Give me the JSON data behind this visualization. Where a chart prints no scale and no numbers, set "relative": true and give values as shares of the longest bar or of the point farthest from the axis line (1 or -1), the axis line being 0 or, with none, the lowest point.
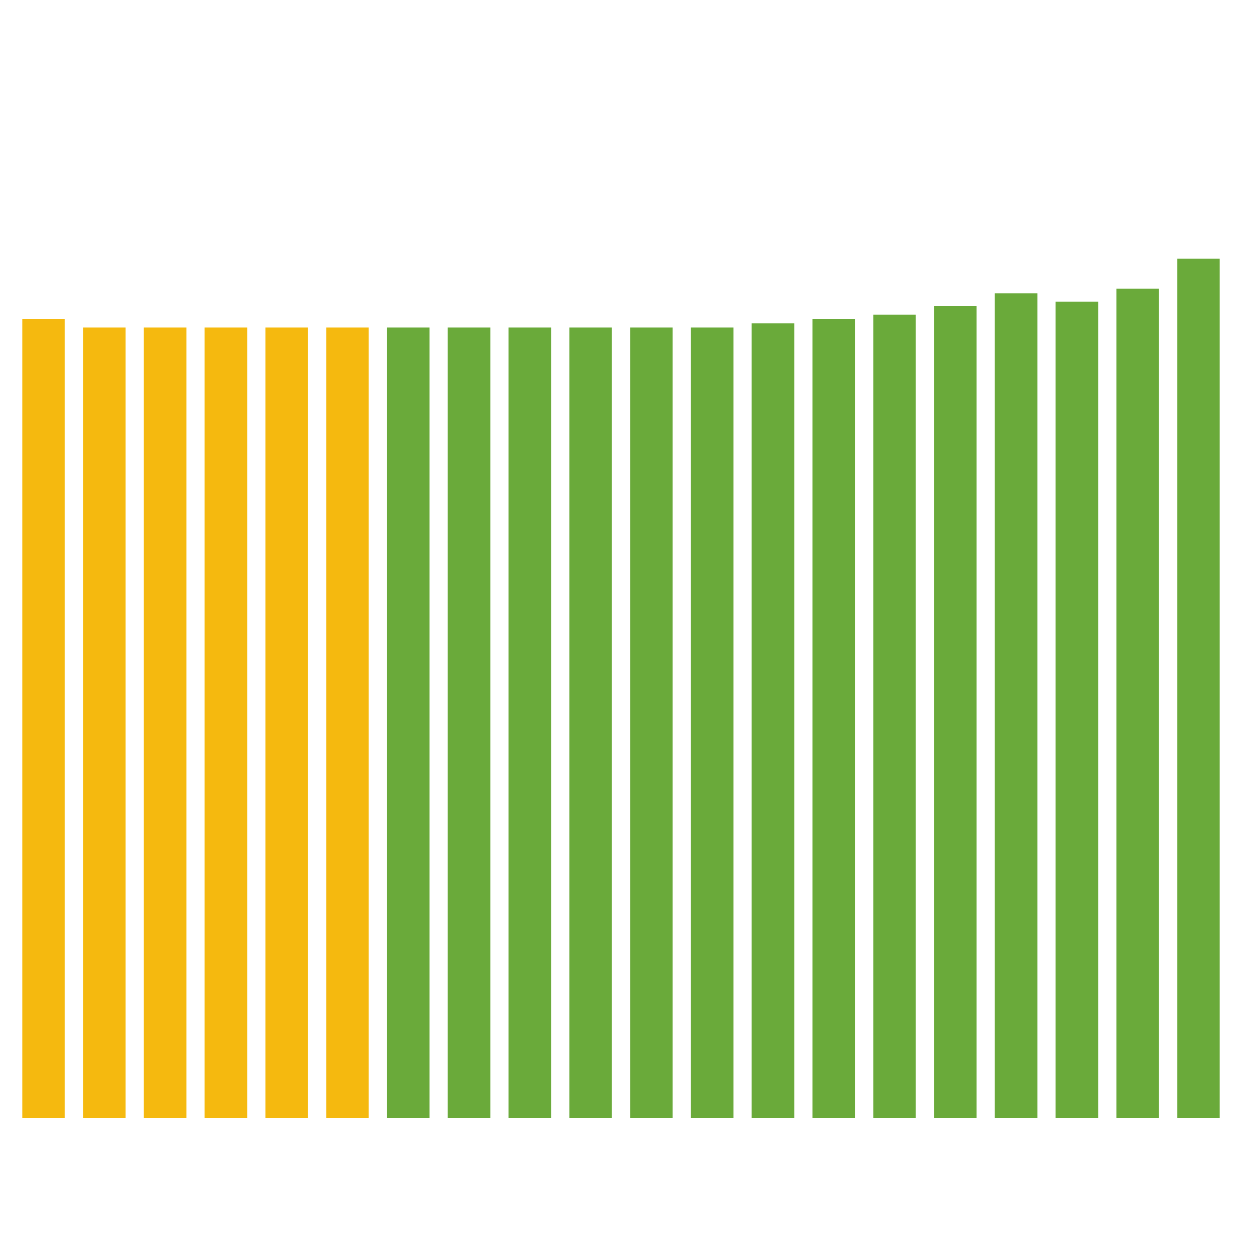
{
  "chart_data": {
    "type": "bar",
    "relative": true,
    "categories": [
      null,
      null,
      null,
      null,
      null,
      null,
      null,
      null,
      null,
      null,
      null,
      null,
      null,
      null,
      null,
      null,
      null,
      null,
      null,
      null
    ],
    "values": [
      0.93,
      0.92,
      0.92,
      0.92,
      0.92,
      0.92,
      0.92,
      0.92,
      0.92,
      0.92,
      0.92,
      0.92,
      0.925,
      0.93,
      0.935,
      0.945,
      0.96,
      0.95,
      0.965,
      1.0
    ],
    "colors": [
      "#f5b90f",
      "#f5b90f",
      "#f5b90f",
      "#f5b90f",
      "#f5b90f",
      "#f5b90f",
      "#6aaa3a",
      "#6aaa3a",
      "#6aaa3a",
      "#6aaa3a",
      "#6aaa3a",
      "#6aaa3a",
      "#6aaa3a",
      "#6aaa3a",
      "#6aaa3a",
      "#6aaa3a",
      "#6aaa3a",
      "#6aaa3a",
      "#6aaa3a",
      "#6aaa3a"
    ],
    "grid": false
  }
}
